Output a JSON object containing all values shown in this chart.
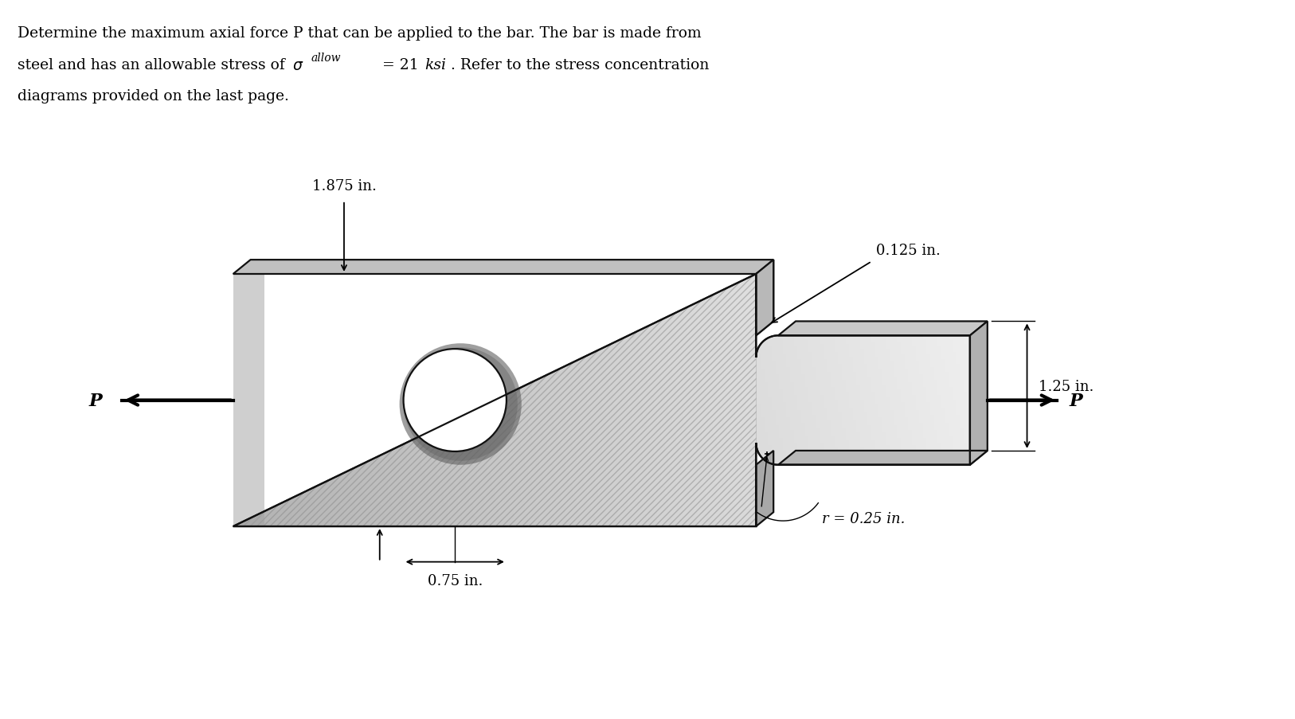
{
  "bg_color": "#ffffff",
  "text_color": "#000000",
  "fig_width": 16.26,
  "fig_height": 9.04,
  "face_color": "#c8c8c8",
  "face_light": "#d8d8d8",
  "face_lighter": "#e8e8e8",
  "face_dark": "#a0a0a0",
  "top_color": "#c0c0c0",
  "side_color": "#989898",
  "edge_color": "#111111",
  "dim_1875": "1.875 in.",
  "dim_0125": "0.125 in.",
  "dim_125": "1.25 in.",
  "dim_075": "0.75 in.",
  "dim_r": "r = 0.25 in.",
  "label_P": "P"
}
